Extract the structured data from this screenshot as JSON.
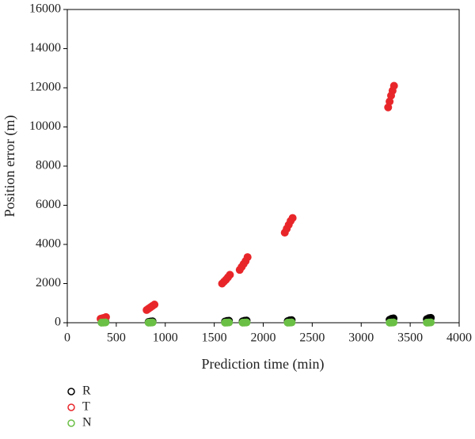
{
  "chart_data": {
    "type": "scatter",
    "xlabel": "Prediction time (min)",
    "ylabel": "Position error (m)",
    "xlim": [
      0,
      4000
    ],
    "ylim": [
      0,
      16000
    ],
    "xticks": [
      0,
      500,
      1000,
      1500,
      2000,
      2500,
      3000,
      3500,
      4000
    ],
    "yticks": [
      0,
      2000,
      4000,
      6000,
      8000,
      10000,
      12000,
      14000,
      16000
    ],
    "grid": false,
    "legend": "bottom-left",
    "series": [
      {
        "name": "R",
        "color": "#000000",
        "x": [
          350,
          370,
          390,
          830,
          850,
          870,
          1610,
          1630,
          1650,
          1790,
          1810,
          1830,
          2250,
          2270,
          2290,
          3290,
          3310,
          3330,
          3670,
          3690,
          3710
        ],
        "values": [
          20,
          30,
          40,
          40,
          60,
          70,
          60,
          90,
          100,
          70,
          100,
          110,
          80,
          120,
          130,
          150,
          200,
          220,
          180,
          230,
          250
        ]
      },
      {
        "name": "T",
        "color": "#e8262a",
        "x": [
          340,
          355,
          370,
          385,
          395,
          810,
          830,
          850,
          870,
          890,
          1580,
          1600,
          1620,
          1640,
          1660,
          1760,
          1780,
          1800,
          1820,
          1840,
          2220,
          2240,
          2260,
          2280,
          2300,
          3275,
          3290,
          3305,
          3320,
          3335
        ],
        "values": [
          200,
          220,
          240,
          260,
          290,
          650,
          720,
          790,
          860,
          930,
          2000,
          2100,
          2200,
          2320,
          2450,
          2700,
          2850,
          3000,
          3150,
          3350,
          4600,
          4800,
          5000,
          5200,
          5350,
          11000,
          11300,
          11600,
          11850,
          12100
        ]
      },
      {
        "name": "N",
        "color": "#6abf45",
        "x": [
          350,
          370,
          390,
          830,
          850,
          870,
          1610,
          1630,
          1650,
          1790,
          1810,
          1830,
          2250,
          2270,
          2290,
          3290,
          3310,
          3330,
          3670,
          3690,
          3710
        ],
        "values": [
          5,
          10,
          15,
          5,
          10,
          15,
          5,
          10,
          15,
          5,
          10,
          15,
          5,
          10,
          15,
          5,
          10,
          15,
          5,
          10,
          15
        ]
      }
    ]
  }
}
